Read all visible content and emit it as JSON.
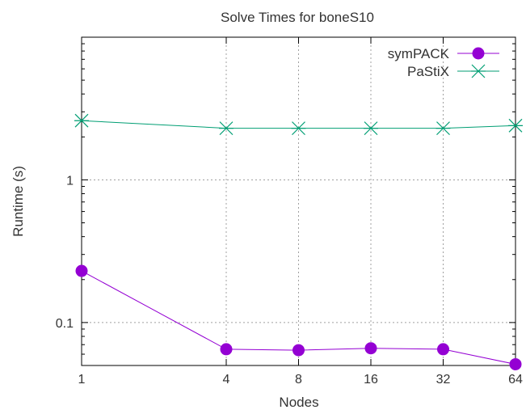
{
  "chart_data": {
    "type": "line",
    "title": "Solve Times for boneS10",
    "xlabel": "Nodes",
    "ylabel": "Runtime (s)",
    "x_scale": "log2",
    "y_scale": "log10",
    "x": [
      1,
      4,
      8,
      16,
      32,
      64
    ],
    "x_tick_labels": [
      "1",
      "4",
      "8",
      "16",
      "32",
      "64"
    ],
    "y_tick_values": [
      0.1,
      1
    ],
    "y_tick_labels": [
      "0.1",
      "1"
    ],
    "xlim": [
      1,
      64
    ],
    "ylim": [
      0.05,
      10
    ],
    "grid": true,
    "legend_position": "top-right",
    "series": [
      {
        "name": "symPACK",
        "color": "#9400d3",
        "marker": "filled-circle",
        "values": [
          0.23,
          0.065,
          0.064,
          0.066,
          0.065,
          0.051
        ]
      },
      {
        "name": "PaStiX",
        "color": "#009e73",
        "marker": "star",
        "values": [
          2.6,
          2.3,
          2.3,
          2.3,
          2.3,
          2.4
        ]
      }
    ]
  }
}
